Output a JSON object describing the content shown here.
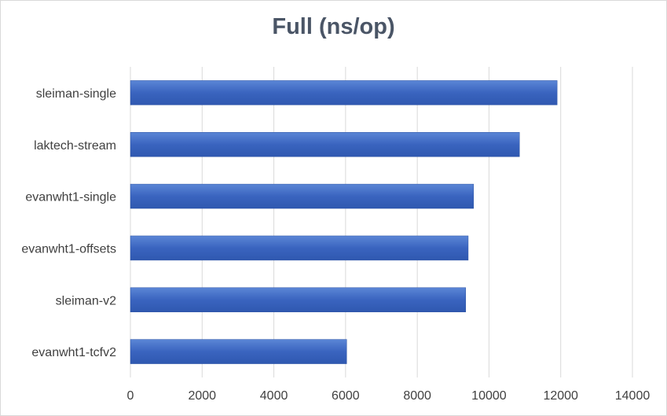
{
  "chart_data": {
    "type": "bar",
    "orientation": "horizontal",
    "title": "Full (ns/op)",
    "xlabel": "",
    "ylabel": "",
    "categories": [
      "sleiman-single",
      "laktech-stream",
      "evanwht1-single",
      "evanwht1-offsets",
      "sleiman-v2",
      "evanwht1-tcfv2"
    ],
    "values": [
      11900,
      10850,
      9570,
      9420,
      9350,
      6030
    ],
    "xlim": [
      0,
      14000
    ],
    "xticks": [
      0,
      2000,
      4000,
      6000,
      8000,
      10000,
      12000,
      14000
    ],
    "grid": true,
    "legend": "none",
    "bar_color": "#4472c4"
  }
}
